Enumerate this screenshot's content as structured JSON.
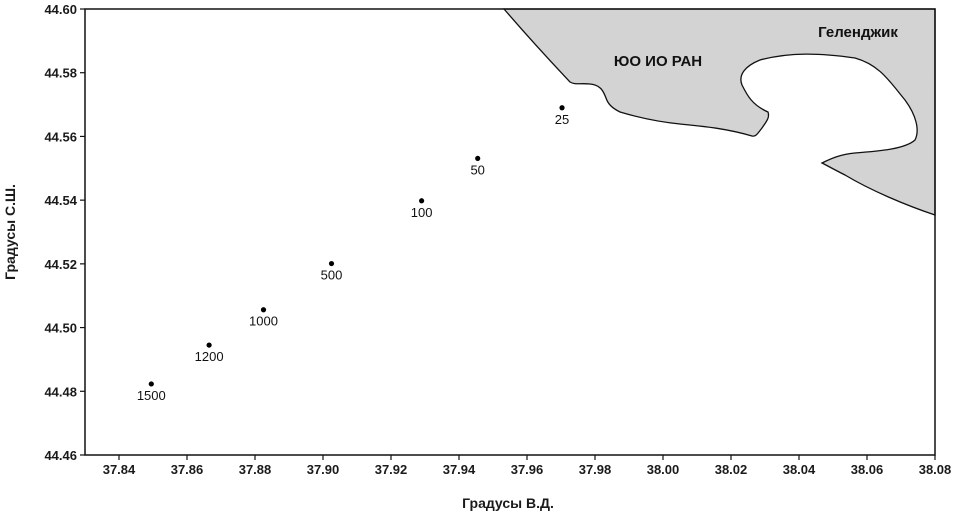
{
  "map": {
    "x_axis": {
      "label": "Градусы В.Д.",
      "range": [
        37.83,
        38.08
      ],
      "ticks": [
        "37.84",
        "37.86",
        "37.88",
        "37.90",
        "37.92",
        "37.94",
        "37.96",
        "37.98",
        "38.00",
        "38.02",
        "38.04",
        "38.06",
        "38.08"
      ]
    },
    "y_axis": {
      "label": "Градусы С.Ш.",
      "range": [
        44.46,
        44.6
      ],
      "ticks": [
        "44.46",
        "44.48",
        "44.50",
        "44.52",
        "44.54",
        "44.56",
        "44.58",
        "44.60"
      ]
    },
    "land_labels": {
      "institute": "ЮО ИО РАН",
      "city": "Геленджик"
    },
    "colors": {
      "land": "#d3d3d3",
      "coastline": "#111111",
      "station_point": "#000000",
      "background": "#ffffff"
    },
    "stations": [
      {
        "depth_label": "1500",
        "lon": 37.8495,
        "lat": 44.4823
      },
      {
        "depth_label": "1200",
        "lon": 37.8665,
        "lat": 44.4945
      },
      {
        "depth_label": "1000",
        "lon": 37.8825,
        "lat": 44.5056
      },
      {
        "depth_label": "500",
        "lon": 37.9025,
        "lat": 44.5201
      },
      {
        "depth_label": "100",
        "lon": 37.929,
        "lat": 44.5398
      },
      {
        "depth_label": "50",
        "lon": 37.9455,
        "lat": 44.5531
      },
      {
        "depth_label": "25",
        "lon": 37.9703,
        "lat": 44.569
      }
    ]
  }
}
